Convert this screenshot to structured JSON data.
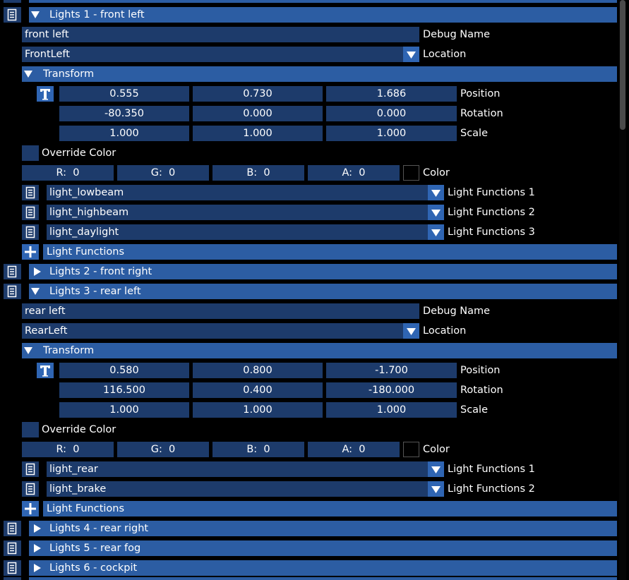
{
  "panels": [
    {
      "header": "Lights 1 - front left",
      "expanded": true,
      "debug_name": "front left",
      "debug_name_label": "Debug Name",
      "location": "FrontLeft",
      "location_label": "Location",
      "transform": {
        "title": "Transform",
        "rows": [
          {
            "values": [
              "0.555",
              "0.730",
              "1.686"
            ],
            "label": "Position"
          },
          {
            "values": [
              "-80.350",
              "0.000",
              "0.000"
            ],
            "label": "Rotation"
          },
          {
            "values": [
              "1.000",
              "1.000",
              "1.000"
            ],
            "label": "Scale"
          }
        ]
      },
      "override_color": "Override Color",
      "color": {
        "channels": [
          "R:  0",
          "G:  0",
          "B:  0",
          "A:  0"
        ],
        "label": "Color"
      },
      "functions": [
        {
          "value": "light_lowbeam",
          "label": "Light Functions 1"
        },
        {
          "value": "light_highbeam",
          "label": "Light Functions 2"
        },
        {
          "value": "light_daylight",
          "label": "Light Functions 3"
        }
      ],
      "add_label": "Light Functions"
    },
    {
      "header": "Lights 2 - front right",
      "expanded": false
    },
    {
      "header": "Lights 3 - rear left",
      "expanded": true,
      "debug_name": "rear left",
      "debug_name_label": "Debug Name",
      "location": "RearLeft",
      "location_label": "Location",
      "transform": {
        "title": "Transform",
        "rows": [
          {
            "values": [
              "0.580",
              "0.800",
              "-1.700"
            ],
            "label": "Position"
          },
          {
            "values": [
              "116.500",
              "0.400",
              "-180.000"
            ],
            "label": "Rotation"
          },
          {
            "values": [
              "1.000",
              "1.000",
              "1.000"
            ],
            "label": "Scale"
          }
        ]
      },
      "override_color": "Override Color",
      "color": {
        "channels": [
          "R:  0",
          "G:  0",
          "B:  0",
          "A:  0"
        ],
        "label": "Color"
      },
      "functions": [
        {
          "value": "light_rear",
          "label": "Light Functions 1"
        },
        {
          "value": "light_brake",
          "label": "Light Functions 2"
        }
      ],
      "add_label": "Light Functions"
    },
    {
      "header": "Lights 4 - rear right",
      "expanded": false
    },
    {
      "header": "Lights 5 - rear fog",
      "expanded": false
    },
    {
      "header": "Lights 6 - cockpit",
      "expanded": false
    }
  ]
}
